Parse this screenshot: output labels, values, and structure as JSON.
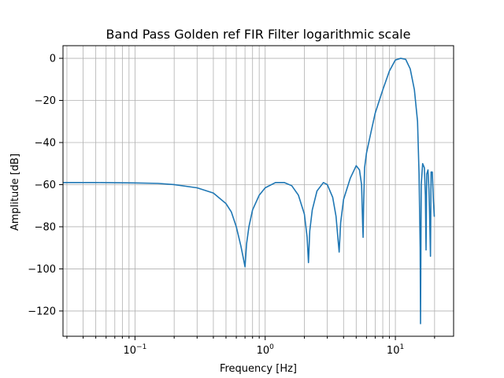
{
  "chart_data": {
    "type": "line",
    "title": "Band Pass Golden ref FIR Filter logarithmic scale",
    "xlabel": "Frequency [Hz]",
    "ylabel": "Amplitude [dB]",
    "xscale": "log",
    "xlim": [
      0.028,
      28
    ],
    "ylim": [
      -132,
      6
    ],
    "grid": true,
    "grid_which": "both",
    "line_color": "#1f77b4",
    "x_ticks": [
      {
        "value": 0.1,
        "base": "10",
        "exp": "−1"
      },
      {
        "value": 1,
        "base": "10",
        "exp": "0"
      },
      {
        "value": 10,
        "base": "10",
        "exp": "1"
      }
    ],
    "y_ticks": [
      {
        "value": 0,
        "label": "0"
      },
      {
        "value": -20,
        "label": "−20"
      },
      {
        "value": -40,
        "label": "−40"
      },
      {
        "value": -60,
        "label": "−60"
      },
      {
        "value": -80,
        "label": "−80"
      },
      {
        "value": -100,
        "label": "−100"
      },
      {
        "value": -120,
        "label": "−120"
      }
    ],
    "series": [
      {
        "x": [
          0.028,
          0.05,
          0.1,
          0.15,
          0.2,
          0.3,
          0.4,
          0.5,
          0.55,
          0.6,
          0.65,
          0.68,
          0.7,
          0.72,
          0.75,
          0.8,
          0.9,
          1.0,
          1.2,
          1.4,
          1.6,
          1.8,
          2.0,
          2.1,
          2.15,
          2.2,
          2.3,
          2.5,
          2.8,
          3.0,
          3.3,
          3.5,
          3.65,
          3.7,
          3.8,
          4.0,
          4.5,
          5.0,
          5.3,
          5.5,
          5.6,
          5.65,
          5.7,
          5.8,
          6.0,
          6.5,
          7.0,
          8.0,
          9.0,
          10.0,
          11.0,
          12.0,
          13.0,
          14.0,
          14.8,
          15.2,
          15.5,
          15.6,
          15.8,
          16.2,
          16.7,
          17.0,
          17.2,
          17.4,
          17.8,
          18.1,
          18.3,
          18.6,
          18.8,
          19.2,
          19.6,
          19.9,
          20.1
        ],
        "y": [
          -59,
          -59,
          -59.2,
          -59.4,
          -60,
          -61.5,
          -64,
          -69,
          -73,
          -80,
          -89,
          -95,
          -99,
          -88,
          -80,
          -72,
          -65,
          -61.5,
          -59,
          -59,
          -60.5,
          -65,
          -74,
          -85,
          -97,
          -82,
          -72,
          -63,
          -59,
          -60,
          -66,
          -75,
          -88,
          -92,
          -78,
          -67,
          -57,
          -51,
          -53,
          -60,
          -78,
          -85,
          -70,
          -52,
          -45,
          -35,
          -26,
          -15,
          -6,
          -0.8,
          0,
          -0.5,
          -5,
          -15,
          -30,
          -55,
          -90,
          -126,
          -60,
          -50,
          -52,
          -65,
          -91,
          -55,
          -53,
          -62,
          -73,
          -94,
          -54,
          -54,
          -68,
          -75,
          -75
        ]
      }
    ]
  }
}
